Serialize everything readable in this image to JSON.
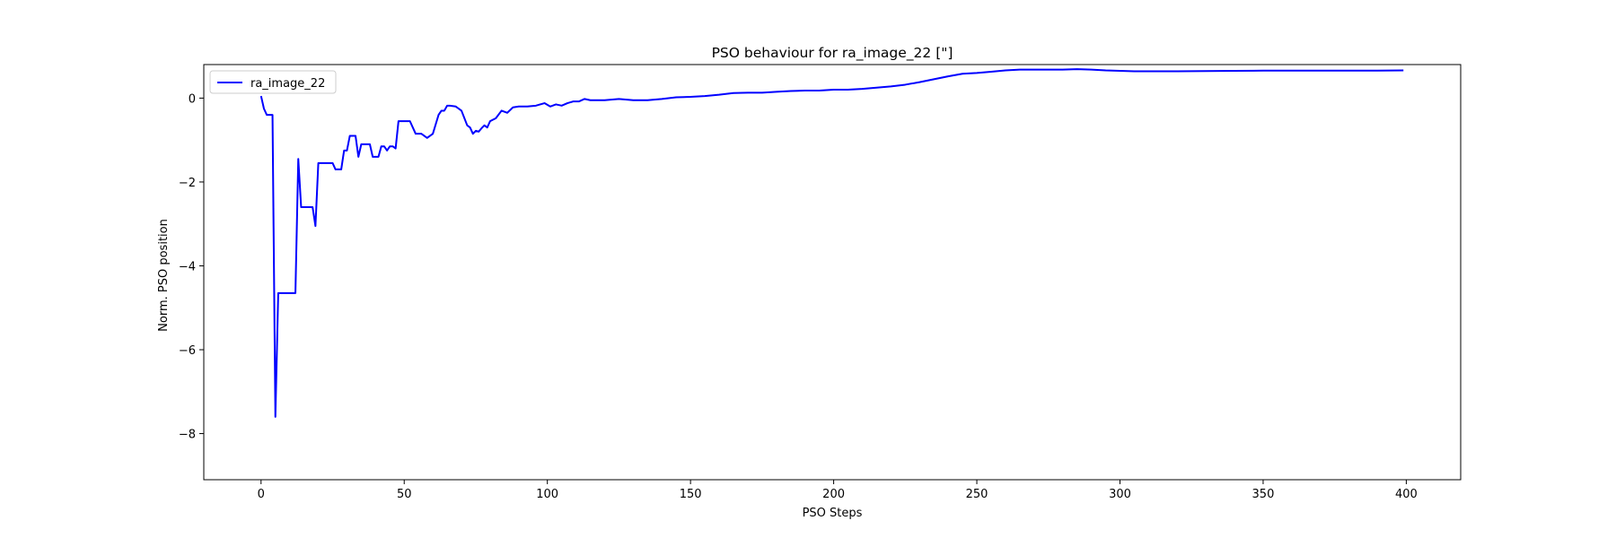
{
  "chart_data": {
    "type": "line",
    "title": "PSO behaviour for ra_image_22 [\"]",
    "xlabel": "PSO Steps",
    "ylabel": "Norm. PSO position",
    "xlim": [
      -20,
      419
    ],
    "ylim": [
      -9.1,
      0.8
    ],
    "xticks": [
      0,
      50,
      100,
      150,
      200,
      250,
      300,
      350,
      400
    ],
    "yticks": [
      0,
      -2,
      -4,
      -6,
      -8
    ],
    "grid": false,
    "legend_position": "top-left",
    "series": [
      {
        "name": "ra_image_22",
        "color": "#0000ff",
        "x": [
          0,
          1,
          2,
          3,
          4,
          5,
          6,
          7,
          8,
          9,
          10,
          11,
          12,
          13,
          14,
          15,
          16,
          17,
          18,
          19,
          20,
          21,
          22,
          23,
          24,
          25,
          26,
          27,
          28,
          29,
          30,
          31,
          32,
          33,
          34,
          35,
          36,
          37,
          38,
          39,
          40,
          41,
          42,
          43,
          44,
          45,
          46,
          47,
          48,
          49,
          50,
          52,
          54,
          56,
          58,
          60,
          62,
          63,
          64,
          65,
          66,
          68,
          70,
          72,
          73,
          74,
          75,
          76,
          77,
          78,
          79,
          80,
          82,
          84,
          86,
          88,
          90,
          93,
          96,
          99,
          101,
          103,
          105,
          107,
          109,
          111,
          113,
          115,
          120,
          125,
          130,
          135,
          140,
          145,
          150,
          155,
          160,
          165,
          170,
          175,
          180,
          185,
          190,
          195,
          200,
          205,
          210,
          215,
          220,
          225,
          230,
          235,
          240,
          245,
          250,
          255,
          260,
          265,
          270,
          275,
          280,
          285,
          290,
          295,
          300,
          305,
          310,
          320,
          330,
          340,
          350,
          360,
          370,
          380,
          390,
          399
        ],
        "y": [
          0.05,
          -0.25,
          -0.4,
          -0.4,
          -0.4,
          -7.6,
          -4.65,
          -4.65,
          -4.65,
          -4.65,
          -4.65,
          -4.65,
          -4.65,
          -1.45,
          -2.6,
          -2.6,
          -2.6,
          -2.6,
          -2.6,
          -3.05,
          -1.55,
          -1.55,
          -1.55,
          -1.55,
          -1.55,
          -1.55,
          -1.7,
          -1.7,
          -1.7,
          -1.25,
          -1.25,
          -0.9,
          -0.9,
          -0.9,
          -1.4,
          -1.1,
          -1.1,
          -1.1,
          -1.1,
          -1.4,
          -1.4,
          -1.4,
          -1.15,
          -1.15,
          -1.25,
          -1.15,
          -1.15,
          -1.2,
          -0.55,
          -0.55,
          -0.55,
          -0.55,
          -0.85,
          -0.85,
          -0.95,
          -0.85,
          -0.4,
          -0.3,
          -0.3,
          -0.18,
          -0.18,
          -0.2,
          -0.3,
          -0.65,
          -0.7,
          -0.85,
          -0.78,
          -0.8,
          -0.72,
          -0.65,
          -0.7,
          -0.55,
          -0.48,
          -0.3,
          -0.35,
          -0.22,
          -0.2,
          -0.2,
          -0.18,
          -0.12,
          -0.2,
          -0.15,
          -0.18,
          -0.12,
          -0.08,
          -0.08,
          -0.02,
          -0.05,
          -0.05,
          -0.02,
          -0.05,
          -0.05,
          -0.02,
          0.02,
          0.03,
          0.05,
          0.08,
          0.12,
          0.13,
          0.13,
          0.15,
          0.17,
          0.18,
          0.18,
          0.2,
          0.2,
          0.22,
          0.25,
          0.28,
          0.32,
          0.38,
          0.45,
          0.52,
          0.58,
          0.6,
          0.63,
          0.66,
          0.68,
          0.68,
          0.68,
          0.68,
          0.69,
          0.68,
          0.66,
          0.65,
          0.64,
          0.64,
          0.64,
          0.645,
          0.65,
          0.655,
          0.655,
          0.655,
          0.655,
          0.655,
          0.66
        ]
      }
    ]
  }
}
